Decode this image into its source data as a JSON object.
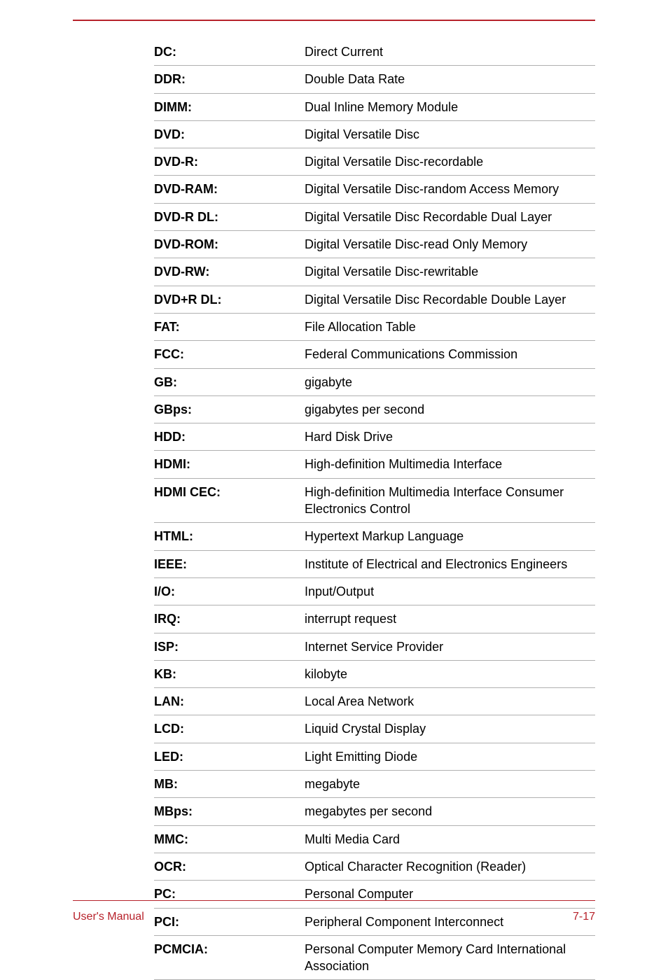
{
  "colors": {
    "accent": "#b7222b",
    "rowBorder": "#b0b0b0",
    "text": "#000000",
    "background": "#ffffff"
  },
  "typography": {
    "bodyFontSize": 18,
    "footerFontSize": 16,
    "fontFamily": "Arial"
  },
  "table": {
    "termColWidth": 215,
    "rows": [
      {
        "term": "DC:",
        "def": "Direct Current"
      },
      {
        "term": "DDR:",
        "def": "Double Data Rate"
      },
      {
        "term": "DIMM:",
        "def": "Dual Inline Memory Module"
      },
      {
        "term": "DVD:",
        "def": "Digital Versatile Disc"
      },
      {
        "term": "DVD-R:",
        "def": "Digital Versatile Disc-recordable"
      },
      {
        "term": "DVD-RAM:",
        "def": "Digital Versatile Disc-random Access Memory"
      },
      {
        "term": "DVD-R DL:",
        "def": "Digital Versatile Disc Recordable Dual Layer"
      },
      {
        "term": "DVD-ROM:",
        "def": "Digital Versatile Disc-read Only Memory"
      },
      {
        "term": "DVD-RW:",
        "def": "Digital Versatile Disc-rewritable"
      },
      {
        "term": "DVD+R DL:",
        "def": "Digital Versatile Disc Recordable Double Layer"
      },
      {
        "term": "FAT:",
        "def": "File Allocation Table"
      },
      {
        "term": "FCC:",
        "def": "Federal Communications Commission"
      },
      {
        "term": "GB:",
        "def": "gigabyte"
      },
      {
        "term": "GBps:",
        "def": "gigabytes per second"
      },
      {
        "term": "HDD:",
        "def": "Hard Disk Drive"
      },
      {
        "term": "HDMI:",
        "def": "High-definition Multimedia Interface"
      },
      {
        "term": "HDMI CEC:",
        "def": "High-definition Multimedia Interface Consumer Electronics Control"
      },
      {
        "term": "HTML:",
        "def": "Hypertext Markup Language"
      },
      {
        "term": "IEEE:",
        "def": "Institute of Electrical and Electronics Engineers"
      },
      {
        "term": "I/O:",
        "def": "Input/Output"
      },
      {
        "term": "IRQ:",
        "def": "interrupt request"
      },
      {
        "term": "ISP:",
        "def": "Internet Service Provider"
      },
      {
        "term": "KB:",
        "def": "kilobyte"
      },
      {
        "term": "LAN:",
        "def": "Local Area Network"
      },
      {
        "term": "LCD:",
        "def": "Liquid Crystal Display"
      },
      {
        "term": "LED:",
        "def": "Light Emitting Diode"
      },
      {
        "term": "MB:",
        "def": "megabyte"
      },
      {
        "term": "MBps:",
        "def": "megabytes per second"
      },
      {
        "term": "MMC:",
        "def": "Multi Media Card"
      },
      {
        "term": "OCR:",
        "def": "Optical Character Recognition (Reader)"
      },
      {
        "term": "PC:",
        "def": "Personal Computer"
      },
      {
        "term": "PCI:",
        "def": "Peripheral Component Interconnect"
      },
      {
        "term": "PCMCIA:",
        "def": "Personal Computer Memory Card International Association"
      }
    ]
  },
  "footer": {
    "left": "User's Manual",
    "right": "7-17"
  }
}
